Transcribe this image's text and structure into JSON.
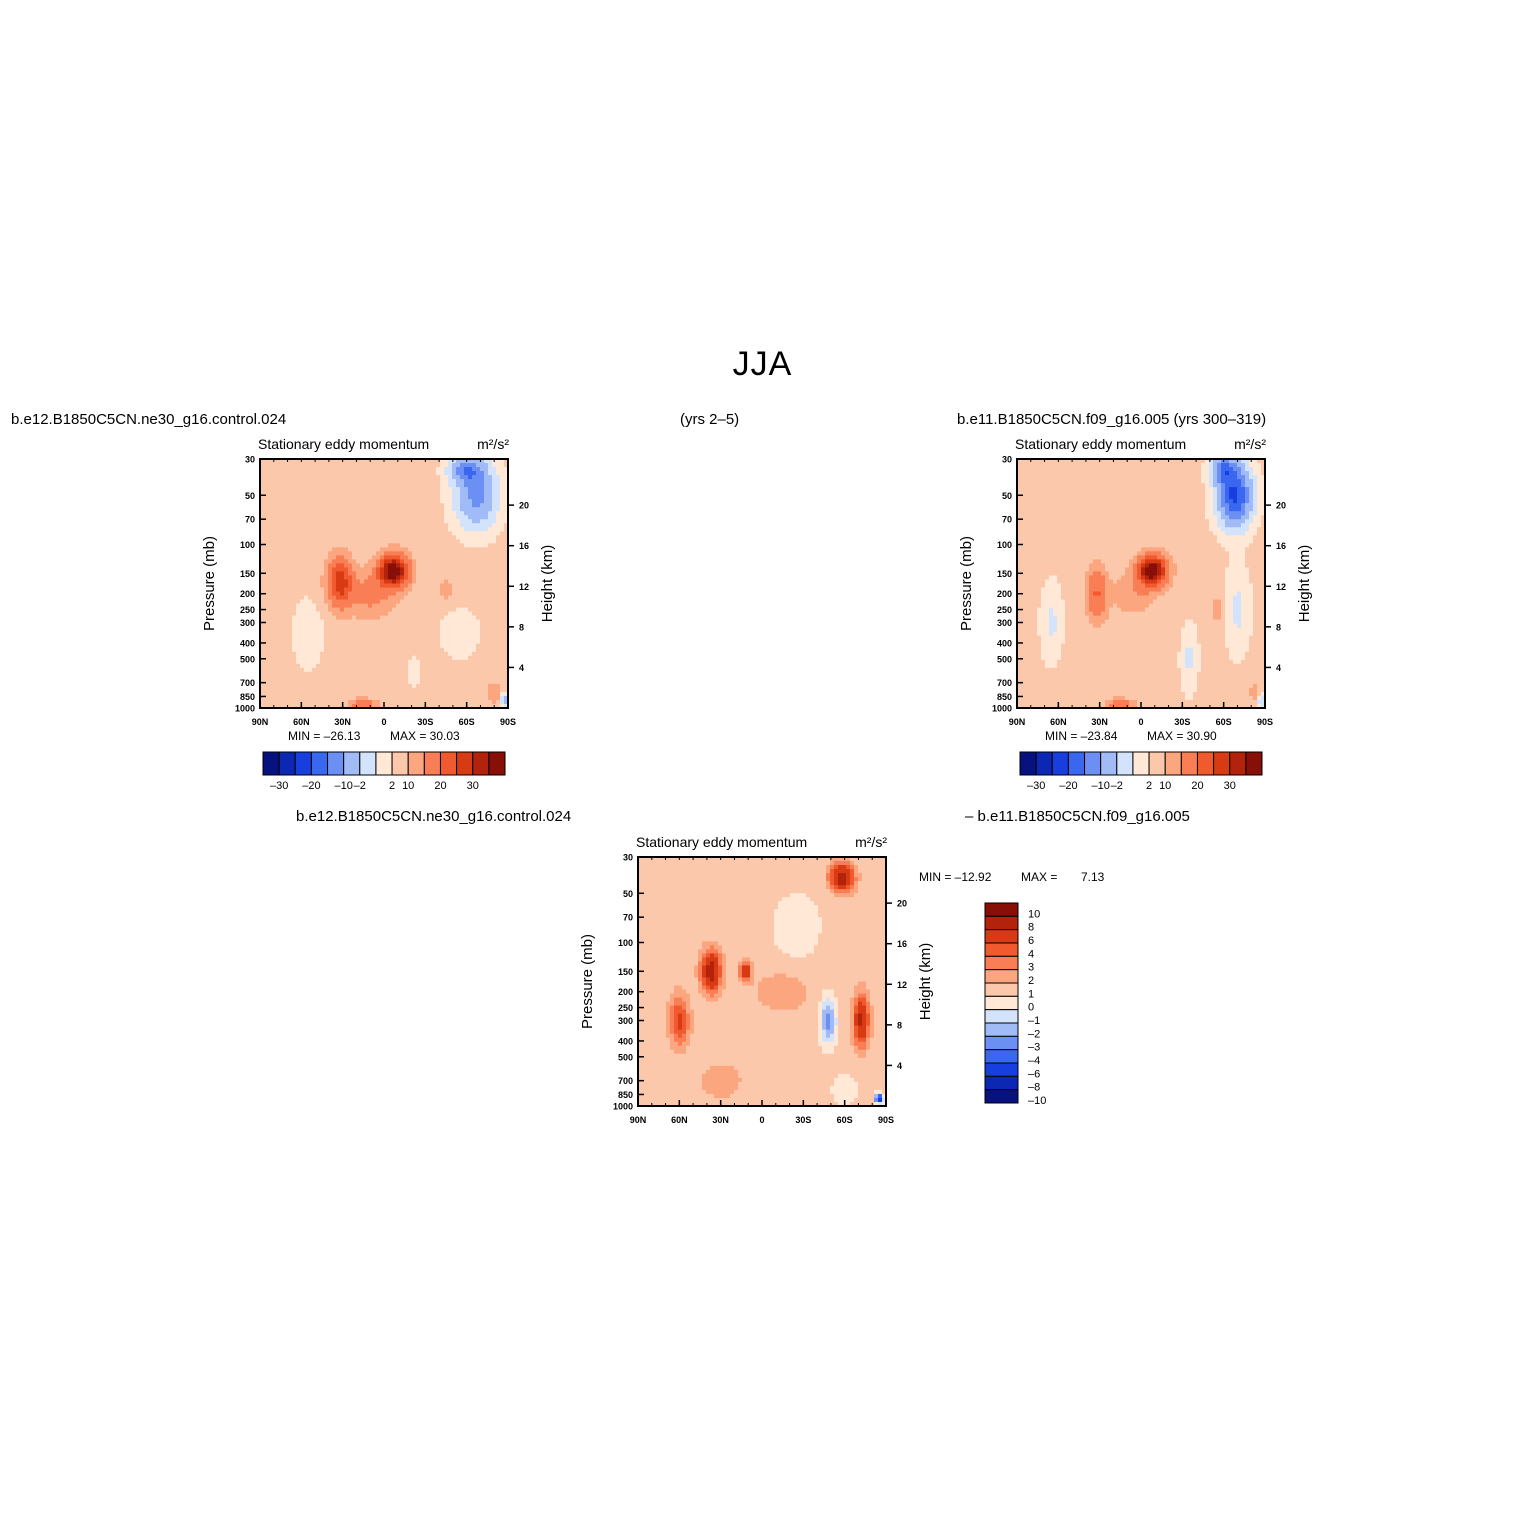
{
  "title": "JJA",
  "headers": {
    "left": "b.e12.B1850C5CN.ne30_g16.control.024",
    "center": "(yrs 2–5)",
    "right": "b.e11.B1850C5CN.f09_g16.005 (yrs 300–319)",
    "diff_left": "b.e12.B1850C5CN.ne30_g16.control.024",
    "diff_right": "– b.e11.B1850C5CN.f09_g16.005"
  },
  "colors": {
    "scale": [
      "#08127e",
      "#0b27b3",
      "#173fe0",
      "#3a67f0",
      "#6b8ff3",
      "#a1bbf7",
      "#d3e3fc",
      "#ffe8d6",
      "#fcc8ab",
      "#fba67f",
      "#f97e55",
      "#f15a2e",
      "#d83a14",
      "#b3230b",
      "#880f08"
    ]
  },
  "chart_data": [
    {
      "type": "heatmap",
      "panel": "ne30 control",
      "title": "Stationary eddy momentum",
      "units": "m²/s²",
      "ylabel": "Pressure (mb)",
      "y2label": "Height (km)",
      "x_ticks": [
        "90N",
        "60N",
        "30N",
        "0",
        "30S",
        "60S",
        "90S"
      ],
      "y_ticks": [
        "30",
        "50",
        "70",
        "100",
        "150",
        "200",
        "250",
        "300",
        "400",
        "500",
        "700",
        "850",
        "1000"
      ],
      "y2_ticks": [
        "20",
        "16",
        "12",
        "8",
        "4"
      ],
      "min_label": "MIN = –26.13",
      "max_label": "MAX = 30.03",
      "min": -26.13,
      "max": 30.03,
      "colorbar_labels": [
        "–30",
        "–20",
        "–10",
        "–2",
        "2",
        "10",
        "20",
        "30"
      ],
      "blobs": [
        {
          "lat": 32,
          "p": 170,
          "v": 18,
          "sx": 6,
          "sy": 0.22
        },
        {
          "lat": -7,
          "p": 145,
          "v": 30,
          "sx": 7,
          "sy": 0.15
        },
        {
          "lat": 10,
          "p": 200,
          "v": 6,
          "sx": 12,
          "sy": 0.22
        },
        {
          "lat": -45,
          "p": 190,
          "v": 3,
          "sx": 4,
          "sy": 0.12
        },
        {
          "lat": 15,
          "p": 950,
          "v": 10,
          "sx": 6,
          "sy": 0.05
        },
        {
          "lat": -67,
          "p": 50,
          "v": -12,
          "sx": 10,
          "sy": 0.3
        },
        {
          "lat": -60,
          "p": 35,
          "v": -12,
          "sx": 8,
          "sy": 0.12
        },
        {
          "lat": -55,
          "p": 350,
          "v": -1.5,
          "sx": 10,
          "sy": 0.25
        },
        {
          "lat": -22,
          "p": 600,
          "v": -2.5,
          "sx": 3,
          "sy": 0.12
        },
        {
          "lat": 55,
          "p": 350,
          "v": -1.5,
          "sx": 8,
          "sy": 0.35
        },
        {
          "lat": -80,
          "p": 800,
          "v": 4,
          "sx": 3,
          "sy": 0.1
        },
        {
          "lat": -88,
          "p": 900,
          "v": -8,
          "sx": 2,
          "sy": 0.06
        }
      ],
      "bias": 0.5
    },
    {
      "type": "heatmap",
      "panel": "f09 (yrs 300–319)",
      "title": "Stationary eddy momentum",
      "units": "m²/s²",
      "ylabel": "Pressure (mb)",
      "y2label": "Height (km)",
      "x_ticks": [
        "90N",
        "60N",
        "30N",
        "0",
        "30S",
        "60S",
        "90S"
      ],
      "y_ticks": [
        "30",
        "50",
        "70",
        "100",
        "150",
        "200",
        "250",
        "300",
        "400",
        "500",
        "700",
        "850",
        "1000"
      ],
      "y2_ticks": [
        "20",
        "16",
        "12",
        "8",
        "4"
      ],
      "min_label": "MIN = –23.84",
      "max_label": "MAX = 30.90",
      "min": -23.84,
      "max": 30.9,
      "colorbar_labels": [
        "–30",
        "–20",
        "–10",
        "–2",
        "2",
        "10",
        "20",
        "30"
      ],
      "blobs": [
        {
          "lat": 32,
          "p": 200,
          "v": 10,
          "sx": 5,
          "sy": 0.25
        },
        {
          "lat": -8,
          "p": 145,
          "v": 30,
          "sx": 7,
          "sy": 0.14
        },
        {
          "lat": 5,
          "p": 200,
          "v": 4,
          "sx": 10,
          "sy": 0.2
        },
        {
          "lat": -55,
          "p": 250,
          "v": 2.5,
          "sx": 3,
          "sy": 0.18
        },
        {
          "lat": 15,
          "p": 950,
          "v": 10,
          "sx": 6,
          "sy": 0.05
        },
        {
          "lat": -68,
          "p": 50,
          "v": -22,
          "sx": 8,
          "sy": 0.28
        },
        {
          "lat": -60,
          "p": 35,
          "v": -14,
          "sx": 6,
          "sy": 0.12
        },
        {
          "lat": 65,
          "p": 300,
          "v": -3,
          "sx": 5,
          "sy": 0.35
        },
        {
          "lat": -35,
          "p": 500,
          "v": -3,
          "sx": 4,
          "sy": 0.3
        },
        {
          "lat": -70,
          "p": 250,
          "v": -3,
          "sx": 6,
          "sy": 0.4
        },
        {
          "lat": -88,
          "p": 900,
          "v": -6,
          "sx": 2,
          "sy": 0.06
        },
        {
          "lat": -82,
          "p": 800,
          "v": 3,
          "sx": 2,
          "sy": 0.08
        }
      ],
      "bias": 0.5
    },
    {
      "type": "heatmap",
      "panel": "difference",
      "title": "Stationary eddy momentum",
      "units": "m²/s²",
      "ylabel": "Pressure (mb)",
      "y2label": "Height (km)",
      "x_ticks": [
        "90N",
        "60N",
        "30N",
        "0",
        "30S",
        "60S",
        "90S"
      ],
      "y_ticks": [
        "30",
        "50",
        "70",
        "100",
        "150",
        "200",
        "250",
        "300",
        "400",
        "500",
        "700",
        "850",
        "1000"
      ],
      "y2_ticks": [
        "20",
        "16",
        "12",
        "8",
        "4"
      ],
      "min_label": "MIN = –12.92",
      "max_label": "MAX =",
      "max_value": "7.13",
      "min": -12.92,
      "max": 7.13,
      "colorbar_labels": [
        "10",
        "8",
        "6",
        "4",
        "3",
        "2",
        "1",
        "0",
        "–1",
        "–2",
        "–3",
        "–4",
        "–6",
        "–8",
        "–10"
      ],
      "blobs": [
        {
          "lat": 37,
          "p": 150,
          "v": 7,
          "sx": 5,
          "sy": 0.2
        },
        {
          "lat": 12,
          "p": 150,
          "v": 5,
          "sx": 3,
          "sy": 0.1
        },
        {
          "lat": 60,
          "p": 300,
          "v": 4,
          "sx": 5,
          "sy": 0.25
        },
        {
          "lat": -58,
          "p": 40,
          "v": 7,
          "sx": 6,
          "sy": 0.14
        },
        {
          "lat": -72,
          "p": 300,
          "v": 6,
          "sx": 4,
          "sy": 0.25
        },
        {
          "lat": -48,
          "p": 300,
          "v": -4,
          "sx": 4,
          "sy": 0.22
        },
        {
          "lat": -15,
          "p": 200,
          "v": 1.5,
          "sx": 14,
          "sy": 0.2
        },
        {
          "lat": -25,
          "p": 80,
          "v": -0.8,
          "sx": 15,
          "sy": 0.4
        },
        {
          "lat": 30,
          "p": 700,
          "v": 1.2,
          "sx": 12,
          "sy": 0.2
        },
        {
          "lat": -85,
          "p": 900,
          "v": -8,
          "sx": 2,
          "sy": 0.05
        },
        {
          "lat": -60,
          "p": 800,
          "v": -0.8,
          "sx": 8,
          "sy": 0.2
        }
      ],
      "bias": 0.4
    }
  ]
}
